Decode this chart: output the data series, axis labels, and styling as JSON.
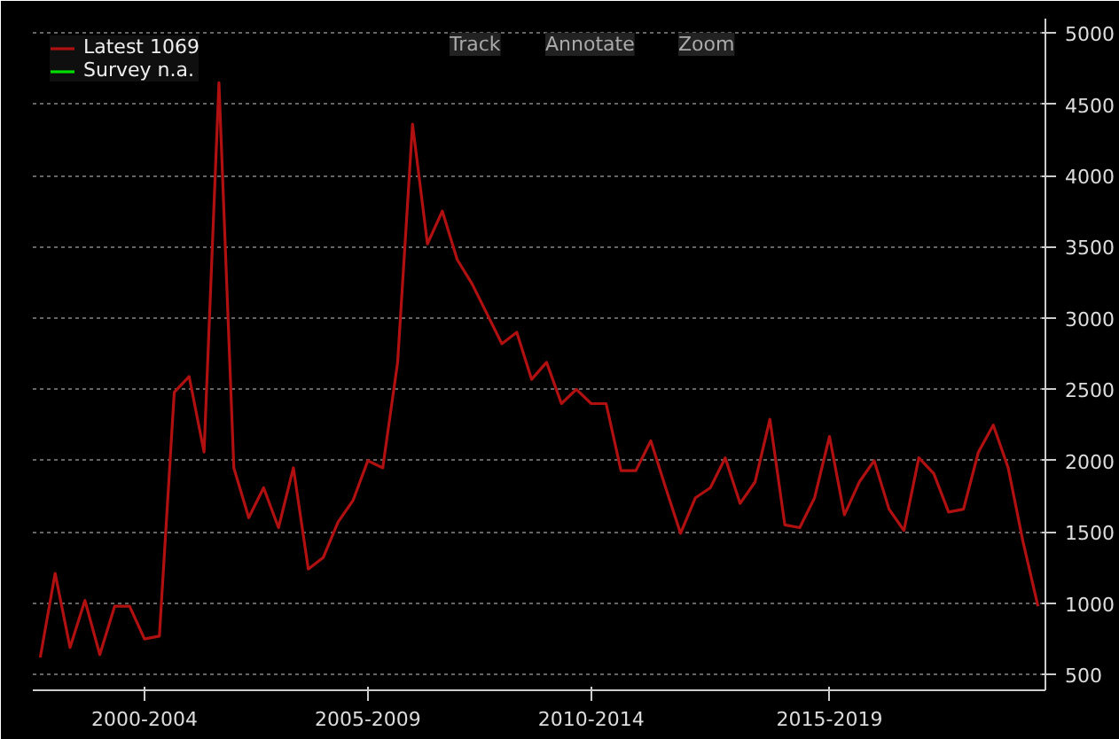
{
  "chart_data": {
    "type": "line",
    "categories": [
      null,
      null,
      null,
      null,
      null,
      null,
      null,
      "2000-2004",
      null,
      null,
      null,
      null,
      null,
      null,
      null,
      null,
      null,
      null,
      null,
      null,
      null,
      null,
      "2005-2009",
      null,
      null,
      null,
      null,
      null,
      null,
      null,
      null,
      null,
      null,
      null,
      null,
      null,
      null,
      "2010-2014",
      null,
      null,
      null,
      null,
      null,
      null,
      null,
      null,
      null,
      null,
      null,
      null,
      null,
      null,
      null,
      "2015-2019",
      null,
      null,
      null,
      null,
      null,
      null,
      null,
      null,
      null,
      null,
      null,
      null,
      null,
      null
    ],
    "series": [
      {
        "name": "Latest 1069",
        "color": "#b01010",
        "values": [
          620,
          1210,
          690,
          1020,
          640,
          980,
          980,
          750,
          770,
          2480,
          2590,
          2060,
          4650,
          1950,
          1600,
          1810,
          1530,
          1950,
          1240,
          1320,
          1570,
          1720,
          2000,
          1950,
          2690,
          4360,
          3520,
          3750,
          3410,
          3240,
          3030,
          2820,
          2900,
          2570,
          2690,
          2400,
          2500,
          2400,
          2400,
          1930,
          1930,
          2140,
          1810,
          1490,
          1740,
          1810,
          2020,
          1700,
          1850,
          2290,
          1550,
          1530,
          1740,
          2170,
          1620,
          1850,
          2000,
          1660,
          1510,
          2020,
          1910,
          1640,
          1660,
          2060,
          2250,
          1950,
          1430,
          980
        ]
      },
      {
        "name": "Survey n.a.",
        "color": "#00e000",
        "values": [
          null,
          null,
          null,
          null,
          null,
          null,
          null,
          null,
          null,
          null,
          null,
          null,
          null,
          null,
          null,
          null,
          null,
          null,
          null,
          null,
          null,
          null,
          null,
          null,
          null,
          null,
          null,
          null,
          null,
          null,
          null,
          null,
          null,
          null,
          null,
          null,
          null,
          null,
          null,
          null,
          null,
          null,
          null,
          null,
          null,
          null,
          null,
          null,
          null,
          null,
          null,
          null,
          null,
          null,
          null,
          null,
          null,
          null,
          null,
          null,
          null,
          null,
          null,
          null,
          null,
          null,
          null,
          null
        ]
      }
    ],
    "ylim": [
      390,
      5100
    ],
    "yticks": [
      500,
      1000,
      1500,
      2000,
      2500,
      3000,
      3500,
      4000,
      4500,
      5000
    ],
    "grid": "y",
    "legend": "top left",
    "annotations": [
      "Track",
      "Annotate",
      "Zoom"
    ]
  }
}
